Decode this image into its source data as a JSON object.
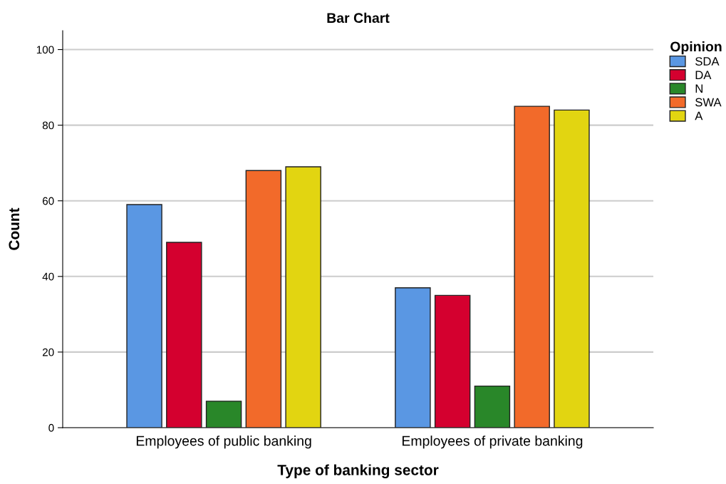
{
  "chart_data": {
    "type": "bar",
    "title": "Bar Chart",
    "xlabel": "Type of banking sector",
    "ylabel": "Count",
    "legend_title": "Opinion",
    "categories": [
      "Employees of public banking",
      "Employees of private banking"
    ],
    "series": [
      {
        "name": "SDA",
        "color": "#5a97e3",
        "values": [
          59,
          37
        ]
      },
      {
        "name": "DA",
        "color": "#d4002f",
        "values": [
          49,
          35
        ]
      },
      {
        "name": "N",
        "color": "#298729",
        "values": [
          7,
          11
        ]
      },
      {
        "name": "SWA",
        "color": "#f26a2a",
        "values": [
          68,
          85
        ]
      },
      {
        "name": "A",
        "color": "#e2d511",
        "values": [
          69,
          84
        ]
      }
    ],
    "ylim": [
      0,
      105
    ],
    "yticks": [
      0,
      20,
      40,
      60,
      80,
      100
    ],
    "grid": "y",
    "legend": "top right"
  }
}
